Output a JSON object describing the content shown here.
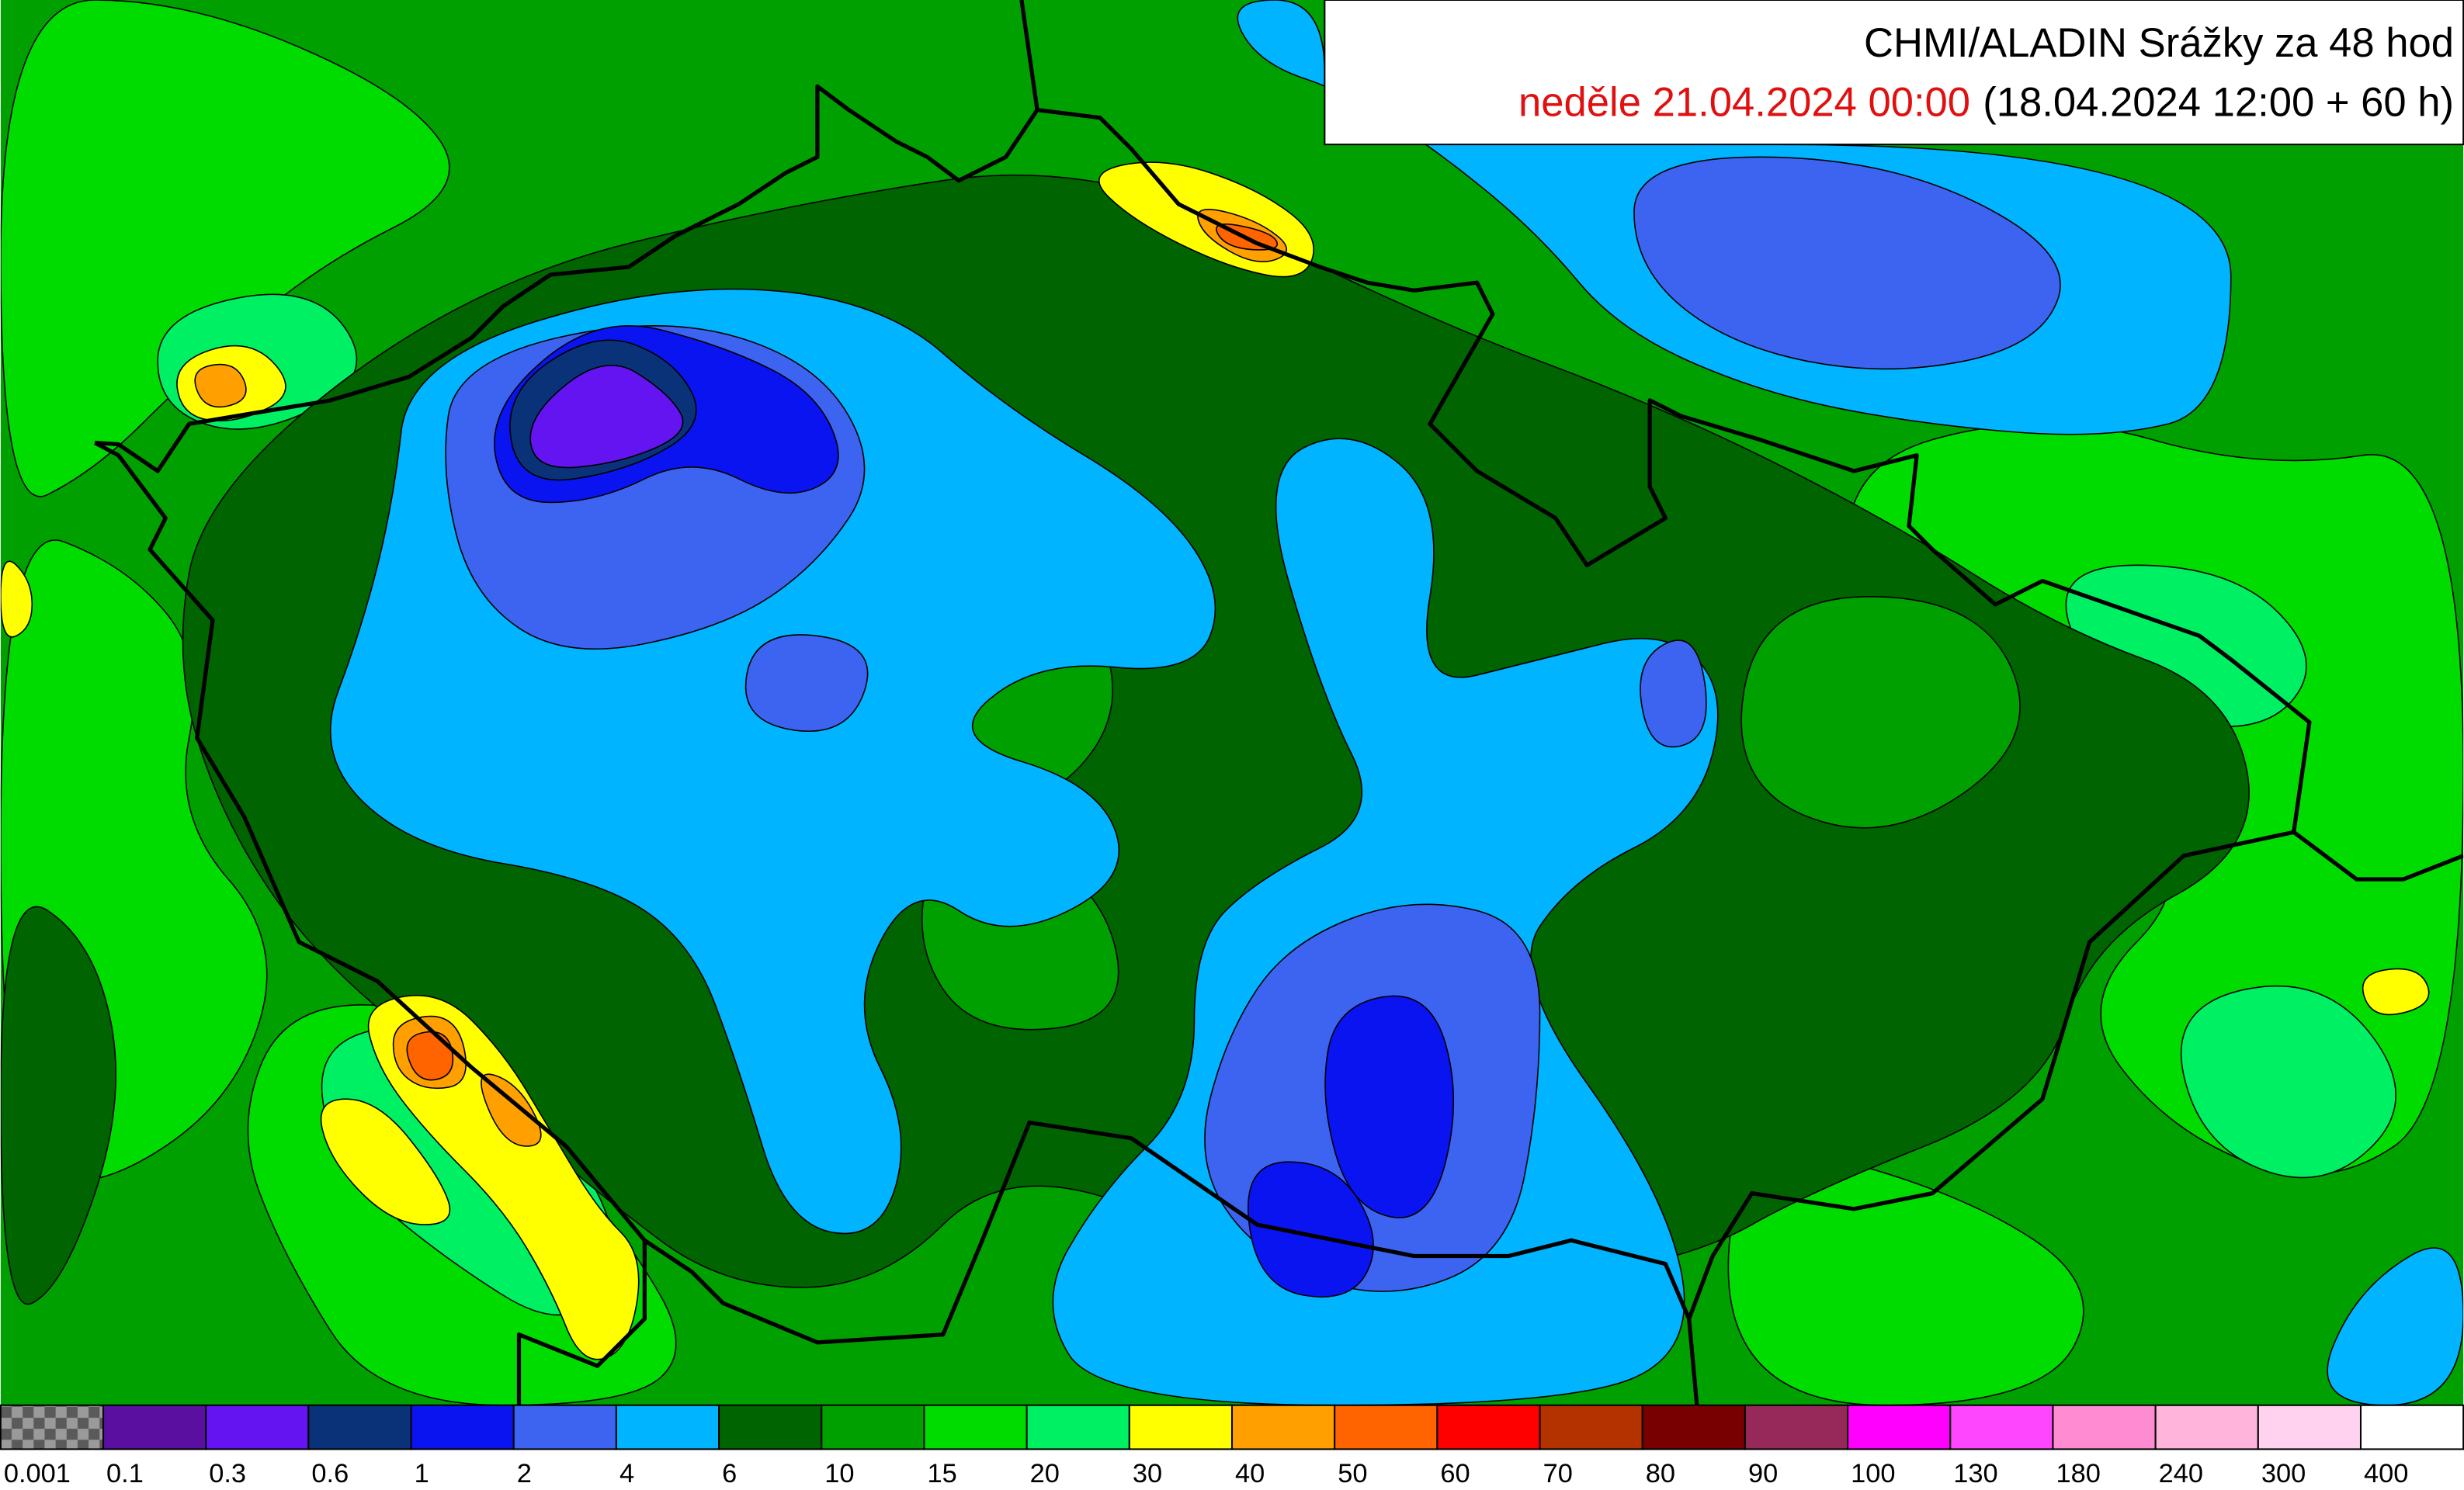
{
  "header": {
    "title": "CHMI/ALADIN Srážky za 48 hod",
    "valid_time": "neděle 21.04.2024 00:00",
    "run_info": "(18.04.2024 12:00 + 60 h)"
  },
  "legend": {
    "items": [
      {
        "label": "0.001",
        "color": "checker"
      },
      {
        "label": "0.1",
        "color": "#5a0fa0"
      },
      {
        "label": "0.3",
        "color": "#6414f0"
      },
      {
        "label": "0.6",
        "color": "#0a3278"
      },
      {
        "label": "1",
        "color": "#0a14f0"
      },
      {
        "label": "2",
        "color": "#3c64f0"
      },
      {
        "label": "4",
        "color": "#00b4ff"
      },
      {
        "label": "6",
        "color": "#006400"
      },
      {
        "label": "10",
        "color": "#00a000"
      },
      {
        "label": "15",
        "color": "#00dc00"
      },
      {
        "label": "20",
        "color": "#00f064"
      },
      {
        "label": "30",
        "color": "#ffff00"
      },
      {
        "label": "40",
        "color": "#ffa000"
      },
      {
        "label": "50",
        "color": "#ff6400"
      },
      {
        "label": "60",
        "color": "#ff0000"
      },
      {
        "label": "70",
        "color": "#b43200"
      },
      {
        "label": "80",
        "color": "#780000"
      },
      {
        "label": "90",
        "color": "#96285a"
      },
      {
        "label": "100",
        "color": "#ff00ff"
      },
      {
        "label": "130",
        "color": "#ff46ff"
      },
      {
        "label": "180",
        "color": "#ff8cd2"
      },
      {
        "label": "240",
        "color": "#ffb4dc"
      },
      {
        "label": "300",
        "color": "#ffd2f0"
      },
      {
        "label": "400",
        "color": "#ffffff"
      }
    ]
  }
}
